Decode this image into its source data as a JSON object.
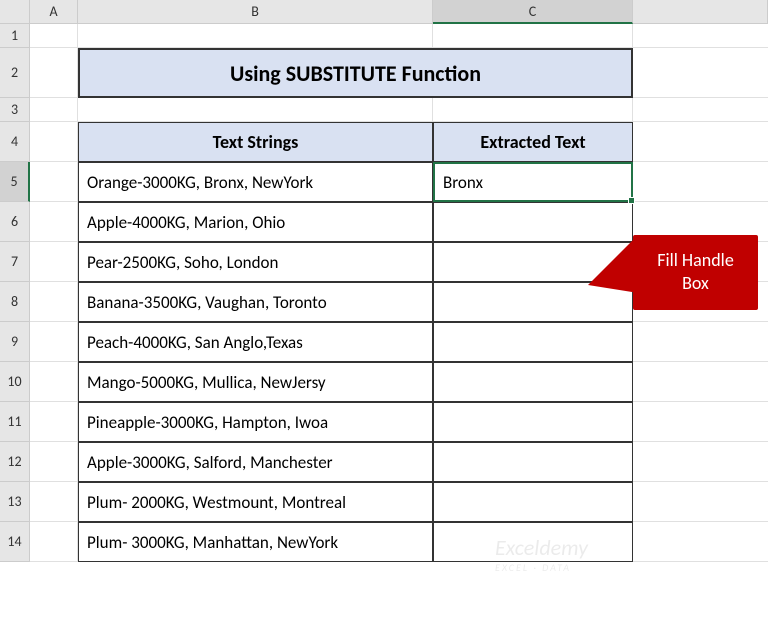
{
  "columns": [
    "A",
    "B",
    "C"
  ],
  "rows": [
    "1",
    "2",
    "3",
    "4",
    "5",
    "6",
    "7",
    "8",
    "9",
    "10",
    "11",
    "12",
    "13",
    "14"
  ],
  "title": "Using SUBSTITUTE Function",
  "headers": {
    "B": "Text Strings",
    "C": "Extracted Text"
  },
  "data": [
    {
      "b": "Orange-3000KG, Bronx, NewYork",
      "c": "Bronx"
    },
    {
      "b": "Apple-4000KG, Marion, Ohio",
      "c": ""
    },
    {
      "b": "Pear-2500KG, Soho, London",
      "c": ""
    },
    {
      "b": "Banana-3500KG, Vaughan, Toronto",
      "c": ""
    },
    {
      "b": "Peach-4000KG, San Anglo,Texas",
      "c": ""
    },
    {
      "b": "Mango-5000KG, Mullica, NewJersy",
      "c": ""
    },
    {
      "b": "Pineapple-3000KG, Hampton, Iwoa",
      "c": ""
    },
    {
      "b": "Apple-3000KG, Salford, Manchester",
      "c": ""
    },
    {
      "b": "Plum- 2000KG, Westmount, Montreal",
      "c": ""
    },
    {
      "b": "Plum- 3000KG, Manhattan, NewYork",
      "c": ""
    }
  ],
  "selected": {
    "col": "C",
    "row": "5"
  },
  "callout": {
    "line1": "Fill Handle",
    "line2": "Box"
  },
  "colors": {
    "header_bg": "#d9e1f2",
    "selection": "#217346",
    "callout": "#c00000"
  },
  "watermark": {
    "main": "Exceldemy",
    "sub": "EXCEL · DATA"
  }
}
